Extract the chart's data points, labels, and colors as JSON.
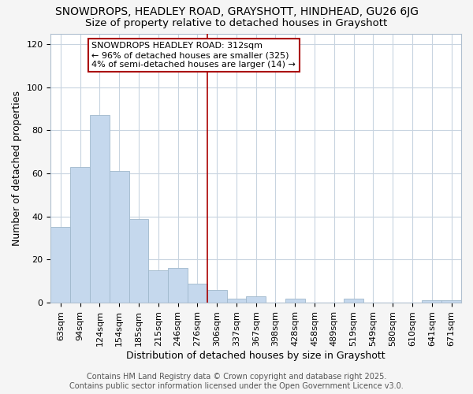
{
  "title": "SNOWDROPS, HEADLEY ROAD, GRAYSHOTT, HINDHEAD, GU26 6JG",
  "subtitle": "Size of property relative to detached houses in Grayshott",
  "xlabel": "Distribution of detached houses by size in Grayshott",
  "ylabel": "Number of detached properties",
  "categories": [
    "63sqm",
    "94sqm",
    "124sqm",
    "154sqm",
    "185sqm",
    "215sqm",
    "246sqm",
    "276sqm",
    "306sqm",
    "337sqm",
    "367sqm",
    "398sqm",
    "428sqm",
    "458sqm",
    "489sqm",
    "519sqm",
    "549sqm",
    "580sqm",
    "610sqm",
    "641sqm",
    "671sqm"
  ],
  "values": [
    35,
    63,
    87,
    61,
    39,
    15,
    16,
    9,
    6,
    2,
    3,
    0,
    2,
    0,
    0,
    2,
    0,
    0,
    0,
    1,
    1
  ],
  "highlight_index": 8,
  "bar_color": "#c5d8ed",
  "highlight_border_color": "#aa0000",
  "vline_color": "#aa0000",
  "ylim": [
    0,
    125
  ],
  "yticks": [
    0,
    20,
    40,
    60,
    80,
    100,
    120
  ],
  "annotation_line1": "SNOWDROPS HEADLEY ROAD: 312sqm",
  "annotation_line2": "← 96% of detached houses are smaller (325)",
  "annotation_line3": "4% of semi-detached houses are larger (14) →",
  "footer_line1": "Contains HM Land Registry data © Crown copyright and database right 2025.",
  "footer_line2": "Contains public sector information licensed under the Open Government Licence v3.0.",
  "background_color": "#f5f5f5",
  "plot_bg_color": "#ffffff",
  "grid_color": "#c8d4e0",
  "title_fontsize": 10,
  "subtitle_fontsize": 9.5,
  "axis_label_fontsize": 9,
  "tick_fontsize": 8,
  "annotation_fontsize": 8,
  "footer_fontsize": 7
}
